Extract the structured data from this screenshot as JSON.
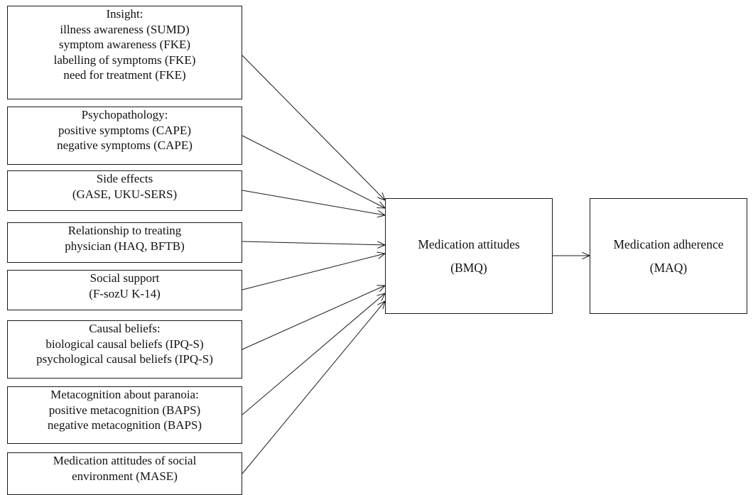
{
  "predictors": [
    {
      "id": "insight",
      "lines": [
        "Insight:",
        "illness awareness (SUMD)",
        "symptom awareness (FKE)",
        "labelling of symptoms (FKE)",
        "need for treatment (FKE)"
      ]
    },
    {
      "id": "psychopathology",
      "lines": [
        "Psychopathology:",
        "positive symptoms (CAPE)",
        "negative symptoms (CAPE)"
      ]
    },
    {
      "id": "side-effects",
      "lines": [
        "Side effects",
        "(GASE, UKU-SERS)"
      ]
    },
    {
      "id": "relationship-physician",
      "lines": [
        "Relationship to treating",
        "physician (HAQ, BFTB)"
      ]
    },
    {
      "id": "social-support",
      "lines": [
        "Social support",
        "(F-sozU K-14)"
      ]
    },
    {
      "id": "causal-beliefs",
      "lines": [
        "Causal beliefs:",
        "biological causal beliefs (IPQ-S)",
        "psychological causal beliefs (IPQ-S)"
      ]
    },
    {
      "id": "metacognition",
      "lines": [
        "Metacognition about paranoia:",
        "positive metacognition (BAPS)",
        "negative metacognition (BAPS)"
      ]
    },
    {
      "id": "social-environment",
      "lines": [
        "Medication attitudes of social",
        "environment (MASE)"
      ]
    }
  ],
  "mediator": {
    "lines": [
      "Medication attitudes",
      "(BMQ)"
    ]
  },
  "outcome": {
    "lines": [
      "Medication adherence",
      "(MAQ)"
    ]
  }
}
